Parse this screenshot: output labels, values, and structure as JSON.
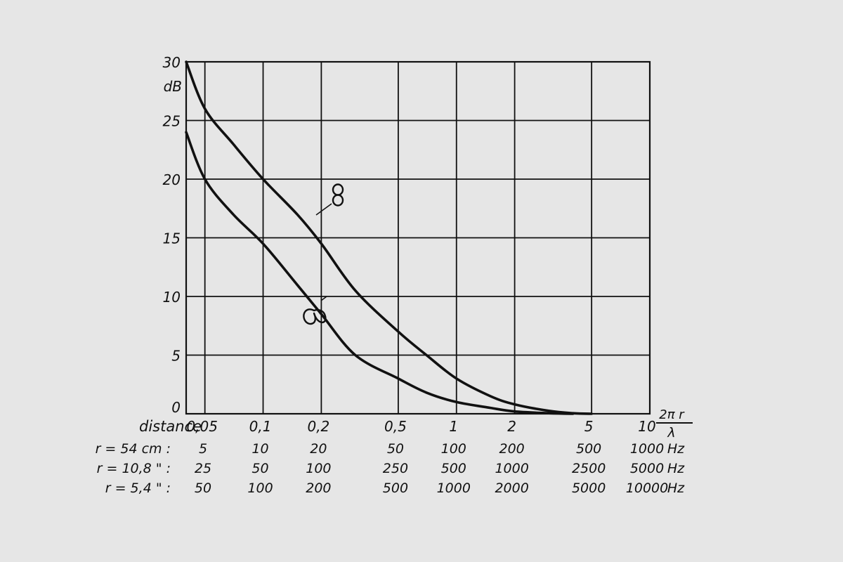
{
  "chart_data": {
    "type": "line",
    "x_scale": "log",
    "xlim": [
      0.04,
      10
    ],
    "ylim": [
      0,
      30
    ],
    "grid": true,
    "ylabel": "dB",
    "x_axis_row_label": "distance",
    "x_axis_end_label": {
      "numerator": "2π r",
      "denominator": "λ"
    },
    "y_ticks": [
      {
        "value": 0,
        "label": "0"
      },
      {
        "value": 5,
        "label": "5"
      },
      {
        "value": 10,
        "label": "10"
      },
      {
        "value": 15,
        "label": "15"
      },
      {
        "value": 20,
        "label": "20"
      },
      {
        "value": 25,
        "label": "25"
      },
      {
        "value": 30,
        "label": "30"
      }
    ],
    "x_ticks": [
      {
        "value": 0.05,
        "label": "0,05"
      },
      {
        "value": 0.1,
        "label": "0,1"
      },
      {
        "value": 0.2,
        "label": "0,2"
      },
      {
        "value": 0.5,
        "label": "0,5"
      },
      {
        "value": 1,
        "label": "1"
      },
      {
        "value": 2,
        "label": "2"
      },
      {
        "value": 5,
        "label": "5"
      },
      {
        "value": 10,
        "label": "10"
      }
    ],
    "frequency_rows": [
      {
        "label": "r = 54 cm :",
        "unit": "Hz",
        "values": [
          "5",
          "10",
          "20",
          "50",
          "100",
          "200",
          "500",
          "1000"
        ]
      },
      {
        "label": "r = 10,8 \" :",
        "unit": "Hz",
        "values": [
          "25",
          "50",
          "100",
          "250",
          "500",
          "1000",
          "2500",
          "5000"
        ]
      },
      {
        "label": "r = 5,4 \" :",
        "unit": "Hz",
        "values": [
          "50",
          "100",
          "200",
          "500",
          "1000",
          "2000",
          "5000",
          "10000"
        ]
      }
    ],
    "series": [
      {
        "name": "8",
        "x": [
          0.04,
          0.05,
          0.07,
          0.1,
          0.15,
          0.2,
          0.3,
          0.5,
          0.7,
          1,
          1.5,
          2,
          3,
          4,
          5
        ],
        "y": [
          30,
          26,
          23,
          20,
          17,
          14.5,
          10.5,
          7,
          5,
          3,
          1.5,
          0.8,
          0.25,
          0.05,
          0
        ]
      },
      {
        "name": "cardioid",
        "x": [
          0.04,
          0.05,
          0.07,
          0.1,
          0.15,
          0.2,
          0.3,
          0.5,
          0.7,
          1,
          1.5,
          2,
          3,
          4
        ],
        "y": [
          24,
          20,
          17,
          14.5,
          11,
          8.5,
          5,
          3,
          1.8,
          1,
          0.5,
          0.2,
          0.05,
          0
        ]
      }
    ]
  }
}
